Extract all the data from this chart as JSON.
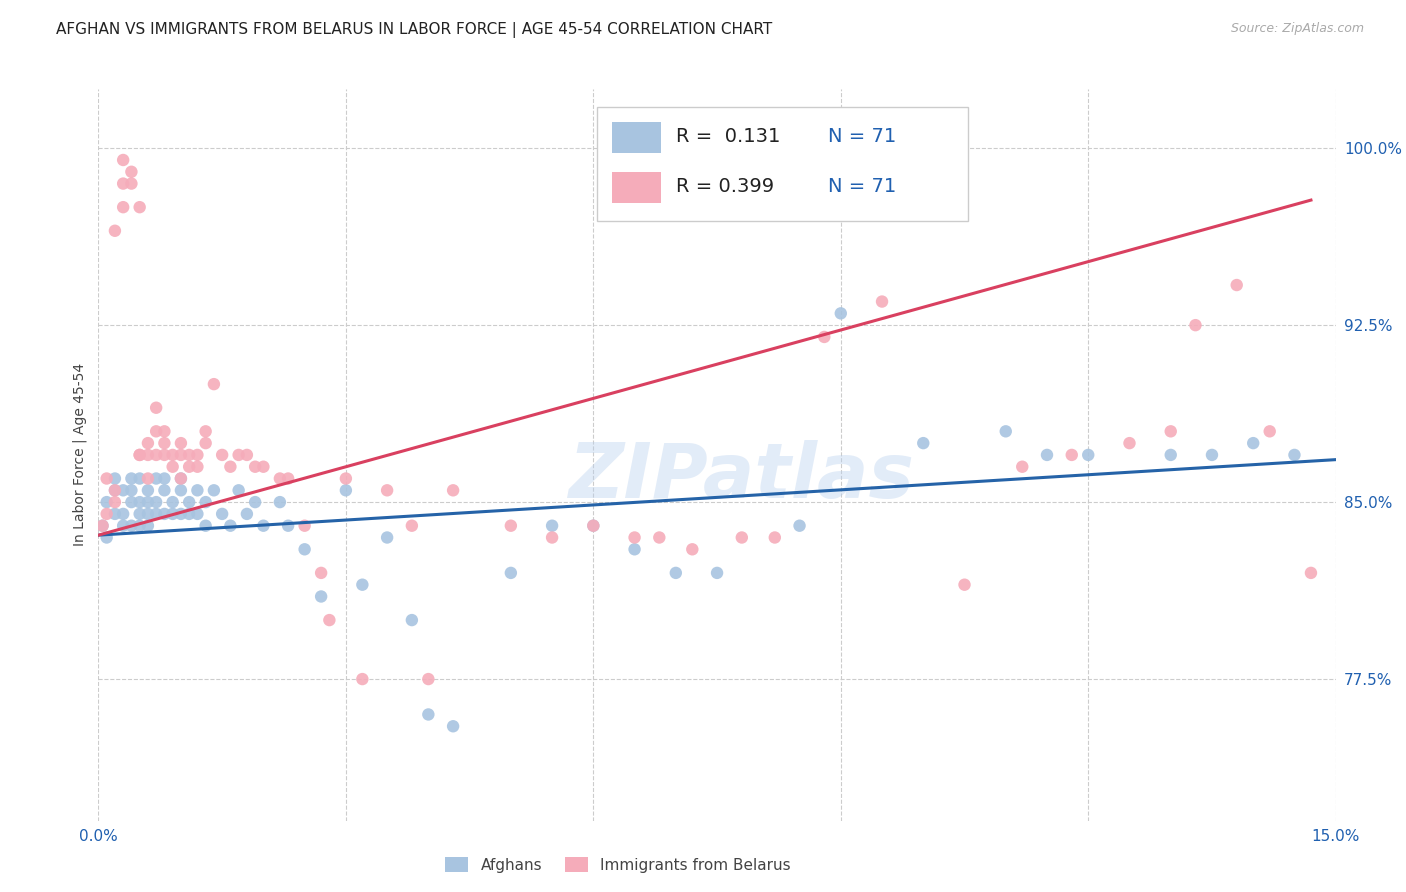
{
  "title": "AFGHAN VS IMMIGRANTS FROM BELARUS IN LABOR FORCE | AGE 45-54 CORRELATION CHART",
  "source": "Source: ZipAtlas.com",
  "ylabel": "In Labor Force | Age 45-54",
  "xlim": [
    0.0,
    0.15
  ],
  "ylim": [
    0.715,
    1.025
  ],
  "xticks": [
    0.0,
    0.03,
    0.06,
    0.09,
    0.12,
    0.15
  ],
  "xticklabels": [
    "0.0%",
    "",
    "",
    "",
    "",
    "15.0%"
  ],
  "yticks": [
    0.775,
    0.85,
    0.925,
    1.0
  ],
  "yticklabels": [
    "77.5%",
    "85.0%",
    "92.5%",
    "100.0%"
  ],
  "legend_labels": [
    "Afghans",
    "Immigrants from Belarus"
  ],
  "legend_r_blue": "R =  0.131",
  "legend_n_blue": "N = 71",
  "legend_r_pink": "R = 0.399",
  "legend_n_pink": "N = 71",
  "blue_color": "#A8C4E0",
  "pink_color": "#F5ACBA",
  "trendline_blue_color": "#2563A8",
  "trendline_pink_color": "#D94060",
  "watermark": "ZIPatlas",
  "blue_scatter_x": [
    0.0005,
    0.001,
    0.001,
    0.002,
    0.002,
    0.002,
    0.003,
    0.003,
    0.003,
    0.004,
    0.004,
    0.004,
    0.004,
    0.005,
    0.005,
    0.005,
    0.005,
    0.006,
    0.006,
    0.006,
    0.006,
    0.007,
    0.007,
    0.007,
    0.008,
    0.008,
    0.008,
    0.009,
    0.009,
    0.01,
    0.01,
    0.01,
    0.011,
    0.011,
    0.012,
    0.012,
    0.013,
    0.013,
    0.014,
    0.015,
    0.016,
    0.017,
    0.018,
    0.019,
    0.02,
    0.022,
    0.023,
    0.025,
    0.027,
    0.03,
    0.032,
    0.035,
    0.038,
    0.04,
    0.043,
    0.05,
    0.055,
    0.06,
    0.065,
    0.07,
    0.075,
    0.085,
    0.09,
    0.1,
    0.11,
    0.115,
    0.12,
    0.13,
    0.135,
    0.14,
    0.145
  ],
  "blue_scatter_y": [
    0.84,
    0.835,
    0.85,
    0.845,
    0.86,
    0.855,
    0.845,
    0.855,
    0.84,
    0.84,
    0.85,
    0.86,
    0.855,
    0.85,
    0.84,
    0.86,
    0.845,
    0.85,
    0.845,
    0.855,
    0.84,
    0.86,
    0.845,
    0.85,
    0.855,
    0.845,
    0.86,
    0.845,
    0.85,
    0.86,
    0.845,
    0.855,
    0.85,
    0.845,
    0.855,
    0.845,
    0.85,
    0.84,
    0.855,
    0.845,
    0.84,
    0.855,
    0.845,
    0.85,
    0.84,
    0.85,
    0.84,
    0.83,
    0.81,
    0.855,
    0.815,
    0.835,
    0.8,
    0.76,
    0.755,
    0.82,
    0.84,
    0.84,
    0.83,
    0.82,
    0.82,
    0.84,
    0.93,
    0.875,
    0.88,
    0.87,
    0.87,
    0.87,
    0.87,
    0.875,
    0.87
  ],
  "pink_scatter_x": [
    0.0005,
    0.001,
    0.001,
    0.002,
    0.002,
    0.002,
    0.003,
    0.003,
    0.003,
    0.004,
    0.004,
    0.005,
    0.005,
    0.005,
    0.006,
    0.006,
    0.006,
    0.007,
    0.007,
    0.007,
    0.008,
    0.008,
    0.008,
    0.009,
    0.009,
    0.01,
    0.01,
    0.01,
    0.011,
    0.011,
    0.012,
    0.012,
    0.013,
    0.013,
    0.014,
    0.015,
    0.016,
    0.017,
    0.018,
    0.019,
    0.02,
    0.022,
    0.023,
    0.025,
    0.027,
    0.028,
    0.03,
    0.032,
    0.035,
    0.038,
    0.04,
    0.043,
    0.05,
    0.055,
    0.06,
    0.065,
    0.068,
    0.072,
    0.078,
    0.082,
    0.088,
    0.095,
    0.105,
    0.112,
    0.118,
    0.125,
    0.13,
    0.133,
    0.138,
    0.142,
    0.147
  ],
  "pink_scatter_y": [
    0.84,
    0.845,
    0.86,
    0.855,
    0.85,
    0.965,
    0.975,
    0.985,
    0.995,
    0.99,
    0.985,
    0.975,
    0.87,
    0.87,
    0.875,
    0.87,
    0.86,
    0.88,
    0.87,
    0.89,
    0.88,
    0.875,
    0.87,
    0.87,
    0.865,
    0.875,
    0.87,
    0.86,
    0.87,
    0.865,
    0.87,
    0.865,
    0.88,
    0.875,
    0.9,
    0.87,
    0.865,
    0.87,
    0.87,
    0.865,
    0.865,
    0.86,
    0.86,
    0.84,
    0.82,
    0.8,
    0.86,
    0.775,
    0.855,
    0.84,
    0.775,
    0.855,
    0.84,
    0.835,
    0.84,
    0.835,
    0.835,
    0.83,
    0.835,
    0.835,
    0.92,
    0.935,
    0.815,
    0.865,
    0.87,
    0.875,
    0.88,
    0.925,
    0.942,
    0.88,
    0.82
  ],
  "blue_trend_x": [
    0.0,
    0.15
  ],
  "blue_trend_y": [
    0.836,
    0.868
  ],
  "pink_trend_x": [
    0.0,
    0.147
  ],
  "pink_trend_y": [
    0.836,
    0.978
  ]
}
